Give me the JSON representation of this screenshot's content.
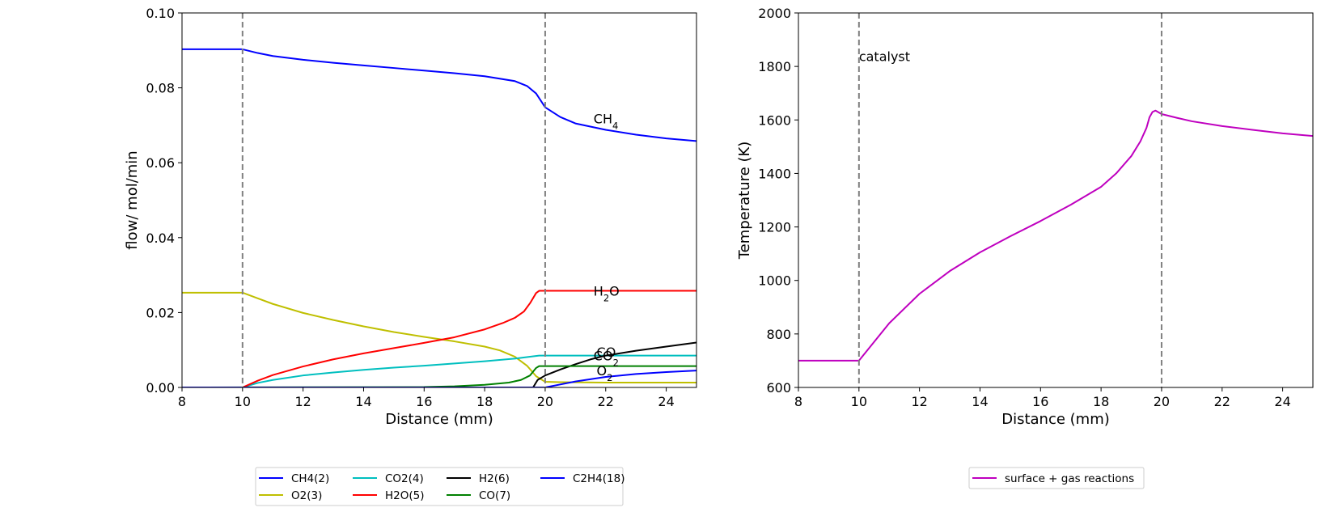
{
  "chart_data": [
    {
      "type": "line",
      "xlabel": "Distance (mm)",
      "ylabel": "flow/ mol/min",
      "xlim": [
        8,
        25
      ],
      "ylim": [
        0,
        0.1
      ],
      "xticks": [
        "8",
        "10",
        "12",
        "14",
        "16",
        "18",
        "20",
        "22",
        "24"
      ],
      "yticks": [
        "0.00",
        "0.02",
        "0.04",
        "0.06",
        "0.08",
        "0.10"
      ],
      "vlines": [
        10,
        20
      ],
      "legend_position": "below",
      "annotations": [
        {
          "text": "CH4",
          "parts": [
            {
              "t": "CH"
            },
            {
              "t": "4",
              "sub": true
            }
          ],
          "x": 21.6,
          "y": 0.0705
        },
        {
          "text": "H2O",
          "parts": [
            {
              "t": "H"
            },
            {
              "t": "2",
              "sub": true
            },
            {
              "t": "O"
            }
          ],
          "x": 21.6,
          "y": 0.0245
        },
        {
          "text": "CO",
          "parts": [
            {
              "t": "CO"
            }
          ],
          "x": 21.7,
          "y": 0.0082
        },
        {
          "text": "CO2",
          "parts": [
            {
              "t": "CO"
            },
            {
              "t": "2",
              "sub": true
            }
          ],
          "x": 21.6,
          "y": 0.0072
        },
        {
          "text": "O2",
          "parts": [
            {
              "t": "O"
            },
            {
              "t": "2",
              "sub": true
            }
          ],
          "x": 21.7,
          "y": 0.0032
        }
      ],
      "series": [
        {
          "name": "CH4(2)",
          "color": "#0000ff",
          "points": [
            [
              8,
              0.0903
            ],
            [
              10,
              0.0903
            ],
            [
              10.5,
              0.0893
            ],
            [
              11,
              0.0885
            ],
            [
              12,
              0.0875
            ],
            [
              13,
              0.0867
            ],
            [
              14,
              0.086
            ],
            [
              15,
              0.0853
            ],
            [
              16,
              0.0846
            ],
            [
              17,
              0.0839
            ],
            [
              18,
              0.0831
            ],
            [
              19,
              0.0818
            ],
            [
              19.4,
              0.0805
            ],
            [
              19.7,
              0.0785
            ],
            [
              20,
              0.0748
            ],
            [
              20.5,
              0.0722
            ],
            [
              21,
              0.0705
            ],
            [
              22,
              0.0688
            ],
            [
              23,
              0.0675
            ],
            [
              24,
              0.0665
            ],
            [
              25,
              0.0658
            ]
          ]
        },
        {
          "name": "O2(3)",
          "color": "#bfbf00",
          "points": [
            [
              8,
              0.0253
            ],
            [
              10,
              0.0253
            ],
            [
              10.5,
              0.0238
            ],
            [
              11,
              0.0223
            ],
            [
              12,
              0.0199
            ],
            [
              13,
              0.018
            ],
            [
              14,
              0.0163
            ],
            [
              15,
              0.0148
            ],
            [
              16,
              0.0135
            ],
            [
              17,
              0.0123
            ],
            [
              18,
              0.0109
            ],
            [
              18.5,
              0.0099
            ],
            [
              19,
              0.0082
            ],
            [
              19.4,
              0.0058
            ],
            [
              19.7,
              0.003
            ],
            [
              20,
              0.0015
            ],
            [
              20.5,
              0.0014
            ],
            [
              22,
              0.0013
            ],
            [
              25,
              0.0013
            ]
          ]
        },
        {
          "name": "CO2(4)",
          "color": "#00bfbf",
          "points": [
            [
              8,
              0
            ],
            [
              10,
              0
            ],
            [
              10.5,
              0.0012
            ],
            [
              11,
              0.002
            ],
            [
              12,
              0.0032
            ],
            [
              13,
              0.004
            ],
            [
              14,
              0.0047
            ],
            [
              15,
              0.0053
            ],
            [
              16,
              0.0058
            ],
            [
              17,
              0.0064
            ],
            [
              18,
              0.007
            ],
            [
              19,
              0.0077
            ],
            [
              19.5,
              0.0082
            ],
            [
              19.8,
              0.0085
            ],
            [
              20,
              0.0085
            ],
            [
              25,
              0.0085
            ]
          ]
        },
        {
          "name": "H2O(5)",
          "color": "#ff0000",
          "points": [
            [
              8,
              0
            ],
            [
              10,
              0
            ],
            [
              10.5,
              0.0018
            ],
            [
              11,
              0.0033
            ],
            [
              12,
              0.0056
            ],
            [
              13,
              0.0075
            ],
            [
              14,
              0.0091
            ],
            [
              15,
              0.0105
            ],
            [
              16,
              0.0119
            ],
            [
              17,
              0.0134
            ],
            [
              18,
              0.0155
            ],
            [
              18.6,
              0.0172
            ],
            [
              19,
              0.0186
            ],
            [
              19.3,
              0.0203
            ],
            [
              19.5,
              0.0225
            ],
            [
              19.7,
              0.0252
            ],
            [
              19.8,
              0.0258
            ],
            [
              20,
              0.0258
            ],
            [
              25,
              0.0258
            ]
          ]
        },
        {
          "name": "H2(6)",
          "color": "#000000",
          "points": [
            [
              8,
              0
            ],
            [
              19.6,
              0
            ],
            [
              19.75,
              0.002
            ],
            [
              20,
              0.0032
            ],
            [
              20.5,
              0.0048
            ],
            [
              21,
              0.0062
            ],
            [
              21.5,
              0.0075
            ],
            [
              22,
              0.0085
            ],
            [
              23,
              0.0098
            ],
            [
              24,
              0.0109
            ],
            [
              25,
              0.012
            ]
          ]
        },
        {
          "name": "CO(7)",
          "color": "#008000",
          "points": [
            [
              8,
              0
            ],
            [
              16,
              0.0001
            ],
            [
              17,
              0.0003
            ],
            [
              18,
              0.0007
            ],
            [
              18.8,
              0.0013
            ],
            [
              19.2,
              0.002
            ],
            [
              19.5,
              0.0032
            ],
            [
              19.7,
              0.0052
            ],
            [
              19.8,
              0.0057
            ],
            [
              20,
              0.0057
            ],
            [
              25,
              0.0057
            ]
          ]
        },
        {
          "name": "C2H4(18)",
          "color": "#0000ff",
          "points": [
            [
              8,
              0
            ],
            [
              20,
              0
            ],
            [
              20.5,
              0.0008
            ],
            [
              21,
              0.0016
            ],
            [
              22,
              0.0028
            ],
            [
              23,
              0.0036
            ],
            [
              24,
              0.0041
            ],
            [
              25,
              0.0045
            ]
          ]
        }
      ]
    },
    {
      "type": "line",
      "xlabel": "Distance (mm)",
      "ylabel": "Temperature (K)",
      "xlim": [
        8,
        25
      ],
      "ylim": [
        600,
        2000
      ],
      "xticks": [
        "8",
        "10",
        "12",
        "14",
        "16",
        "18",
        "20",
        "22",
        "24"
      ],
      "yticks": [
        "600",
        "800",
        "1000",
        "1200",
        "1400",
        "1600",
        "1800",
        "2000"
      ],
      "vlines": [
        10,
        20
      ],
      "legend_position": "below",
      "annotations": [
        {
          "text": "catalyst",
          "parts": [
            {
              "t": "catalyst"
            }
          ],
          "x": 10,
          "y": 1820
        }
      ],
      "series": [
        {
          "name": "surface + gas reactions",
          "color": "#bf00bf",
          "points": [
            [
              8,
              700
            ],
            [
              10,
              700
            ],
            [
              10.5,
              770
            ],
            [
              11,
              840
            ],
            [
              12,
              950
            ],
            [
              13,
              1035
            ],
            [
              14,
              1105
            ],
            [
              15,
              1165
            ],
            [
              16,
              1222
            ],
            [
              17,
              1283
            ],
            [
              18,
              1350
            ],
            [
              18.5,
              1400
            ],
            [
              19,
              1465
            ],
            [
              19.3,
              1520
            ],
            [
              19.5,
              1570
            ],
            [
              19.6,
              1610
            ],
            [
              19.7,
              1630
            ],
            [
              19.8,
              1635
            ],
            [
              20,
              1622
            ],
            [
              20.5,
              1608
            ],
            [
              21,
              1595
            ],
            [
              22,
              1577
            ],
            [
              23,
              1563
            ],
            [
              24,
              1550
            ],
            [
              25,
              1540
            ]
          ]
        }
      ]
    }
  ],
  "legends": [
    {
      "columns": 4,
      "items": [
        {
          "label": "CH4(2)",
          "color": "#0000ff"
        },
        {
          "label": "O2(3)",
          "color": "#bfbf00"
        },
        {
          "label": "CO2(4)",
          "color": "#00bfbf"
        },
        {
          "label": "H2O(5)",
          "color": "#ff0000"
        },
        {
          "label": "H2(6)",
          "color": "#000000"
        },
        {
          "label": "CO(7)",
          "color": "#008000"
        },
        {
          "label": "C2H4(18)",
          "color": "#0000ff"
        }
      ]
    },
    {
      "columns": 1,
      "items": [
        {
          "label": "surface + gas reactions",
          "color": "#bf00bf"
        }
      ]
    }
  ]
}
